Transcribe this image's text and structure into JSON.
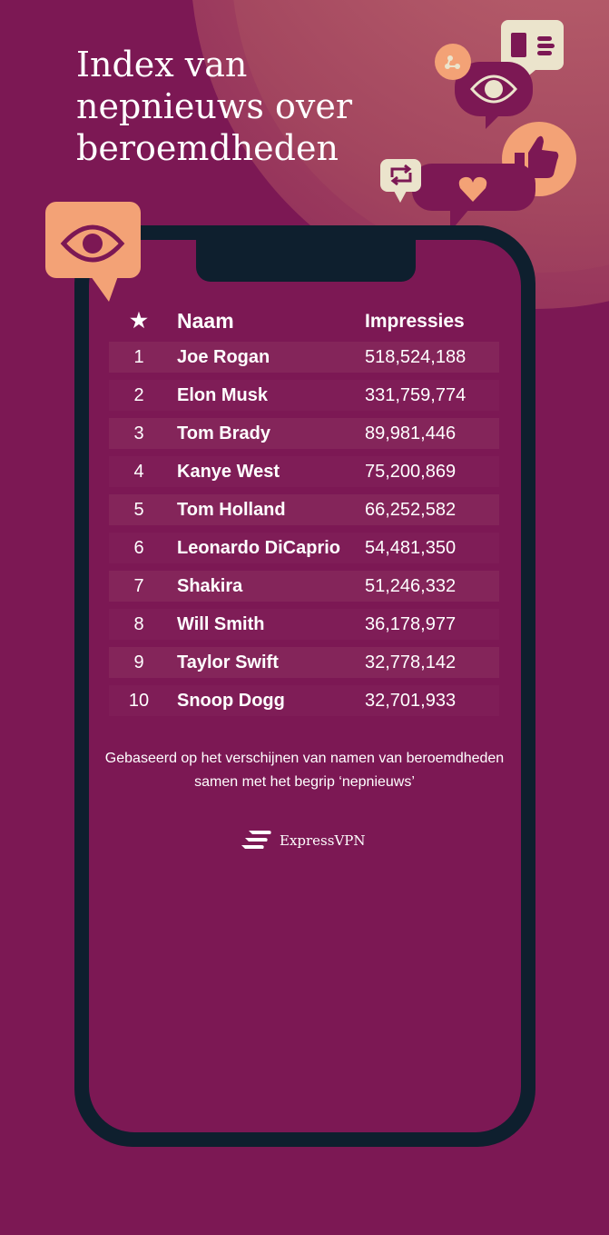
{
  "title": "Index van nepnieuws over beroemdheden",
  "table": {
    "headers": {
      "rank_icon": "star-icon",
      "name": "Naam",
      "impressions": "Impressies"
    },
    "rows": [
      {
        "rank": "1",
        "name": "Joe Rogan",
        "impressions": "518,524,188"
      },
      {
        "rank": "2",
        "name": "Elon Musk",
        "impressions": "331,759,774"
      },
      {
        "rank": "3",
        "name": "Tom Brady",
        "impressions": "89,981,446"
      },
      {
        "rank": "4",
        "name": "Kanye West",
        "impressions": "75,200,869"
      },
      {
        "rank": "5",
        "name": "Tom Holland",
        "impressions": "66,252,582"
      },
      {
        "rank": "6",
        "name": "Leonardo DiCaprio",
        "impressions": "54,481,350"
      },
      {
        "rank": "7",
        "name": "Shakira",
        "impressions": "51,246,332"
      },
      {
        "rank": "8",
        "name": "Will Smith",
        "impressions": "36,178,977"
      },
      {
        "rank": "9",
        "name": "Taylor Swift",
        "impressions": "32,778,142"
      },
      {
        "rank": "10",
        "name": "Snoop Dogg",
        "impressions": "32,701,933"
      }
    ]
  },
  "note": "Gebaseerd op het verschijnen van namen van beroemdheden samen met het begrip ‘nepnieuws’",
  "brand": "ExpressVPN",
  "colors": {
    "background": "#7c1854",
    "phone": "#0e1f2e",
    "accent": "#f3a276",
    "cream": "#ebe4cc"
  }
}
